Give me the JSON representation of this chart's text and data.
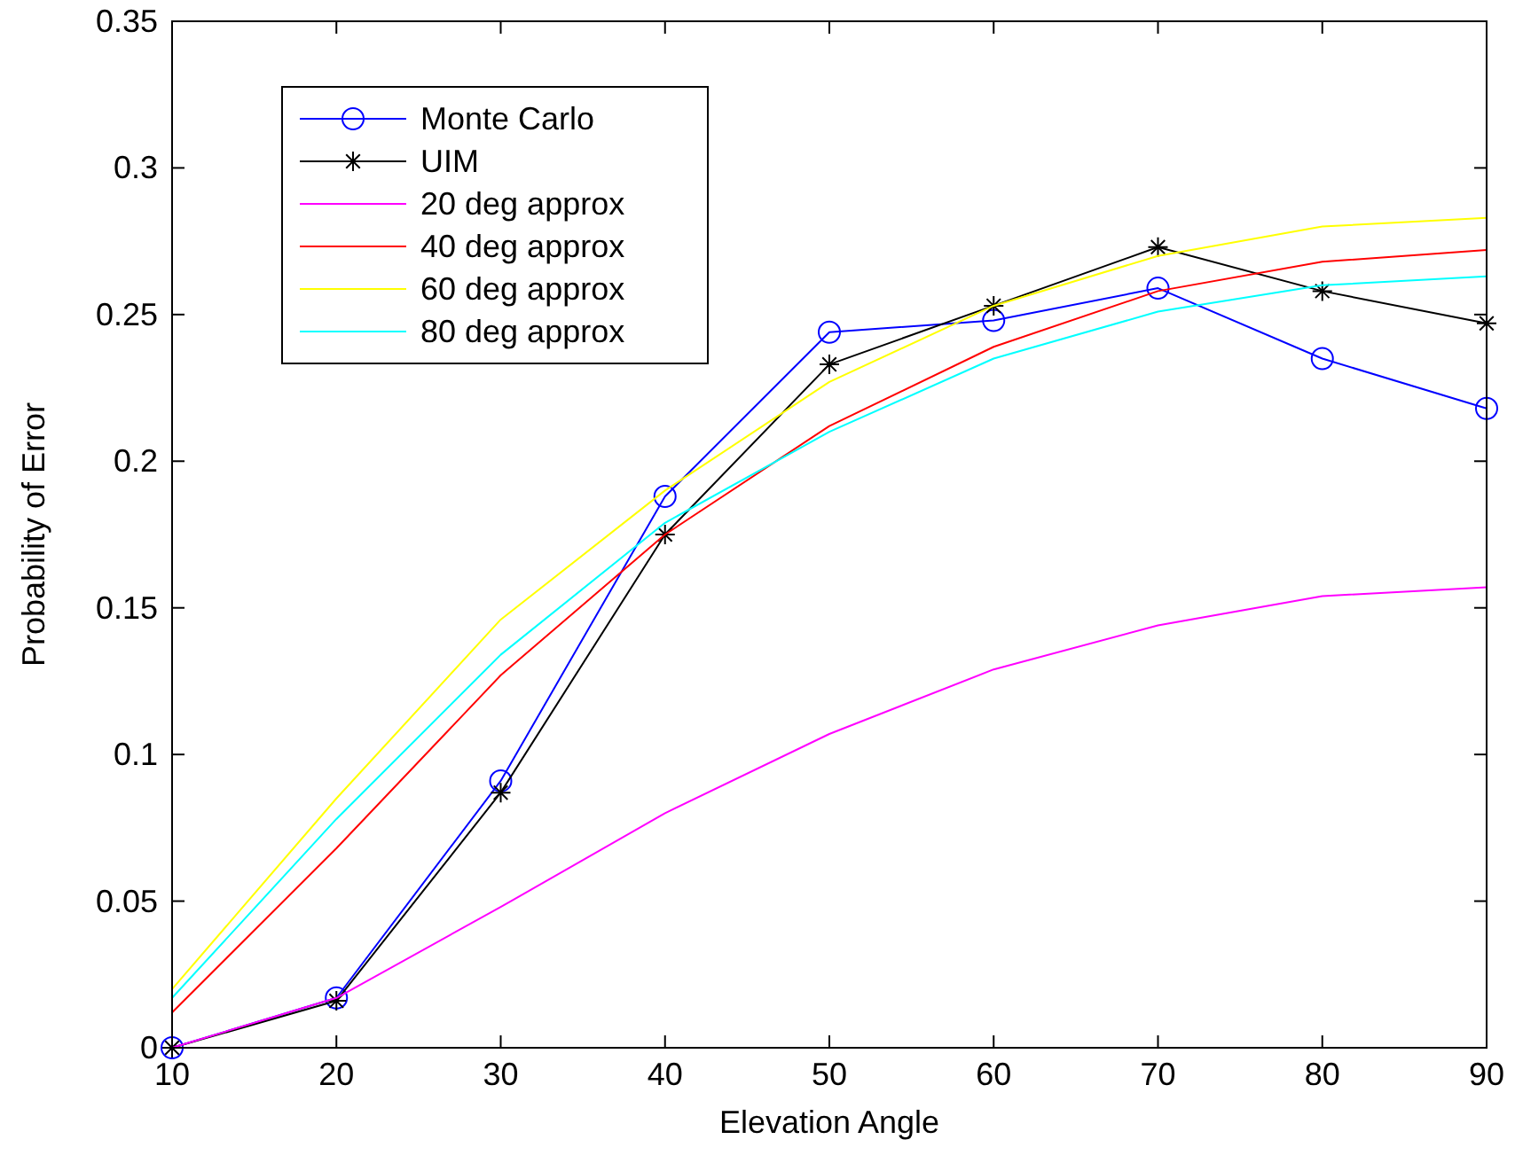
{
  "chart_data": {
    "type": "line",
    "xlabel": "Elevation Angle",
    "ylabel": "Probability of Error",
    "x": [
      10,
      20,
      30,
      40,
      50,
      60,
      70,
      80,
      90
    ],
    "xlim": [
      10,
      90
    ],
    "xticks": [
      10,
      20,
      30,
      40,
      50,
      60,
      70,
      80,
      90
    ],
    "ylim": [
      0,
      0.35
    ],
    "yticks": [
      0,
      0.05,
      0.1,
      0.15,
      0.2,
      0.25,
      0.3,
      0.35
    ],
    "grid": false,
    "legend": "top left",
    "series": [
      {
        "name": "Monte Carlo",
        "color": "#0000ff",
        "marker": "circle",
        "values": [
          0,
          0.017,
          0.091,
          0.188,
          0.244,
          0.248,
          0.259,
          0.235,
          0.218
        ]
      },
      {
        "name": "UIM",
        "color": "#000000",
        "marker": "cross",
        "values": [
          0,
          0.016,
          0.087,
          0.175,
          0.233,
          0.253,
          0.273,
          0.258,
          0.247
        ]
      },
      {
        "name": "20 deg approx",
        "color": "#ff00ff",
        "marker": "none",
        "values": [
          0,
          0.017,
          0.048,
          0.08,
          0.107,
          0.129,
          0.144,
          0.154,
          0.157
        ]
      },
      {
        "name": "40 deg approx",
        "color": "#ff0000",
        "marker": "none",
        "values": [
          0.012,
          0.068,
          0.127,
          0.175,
          0.212,
          0.239,
          0.258,
          0.268,
          0.272
        ]
      },
      {
        "name": "60 deg approx",
        "color": "#ffff00",
        "marker": "none",
        "values": [
          0.02,
          0.085,
          0.146,
          0.19,
          0.227,
          0.253,
          0.27,
          0.28,
          0.283
        ]
      },
      {
        "name": "80 deg approx",
        "color": "#00ffff",
        "marker": "none",
        "values": [
          0.017,
          0.078,
          0.134,
          0.179,
          0.21,
          0.235,
          0.251,
          0.26,
          0.263
        ]
      }
    ]
  }
}
